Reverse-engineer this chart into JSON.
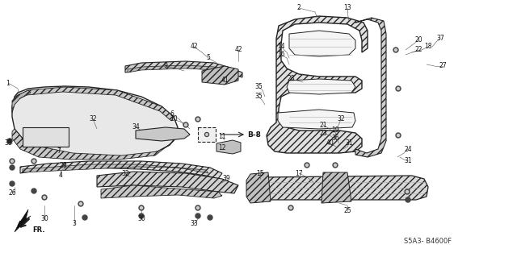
{
  "bg_color": "#ffffff",
  "diagram_code": "S5A3- B4600F",
  "fig_width": 6.4,
  "fig_height": 3.19,
  "hatch_color": "#888888",
  "line_color": "#222222",
  "part_fill": "#e8e8e8",
  "part_hatch_fill": "#d8d8d8"
}
